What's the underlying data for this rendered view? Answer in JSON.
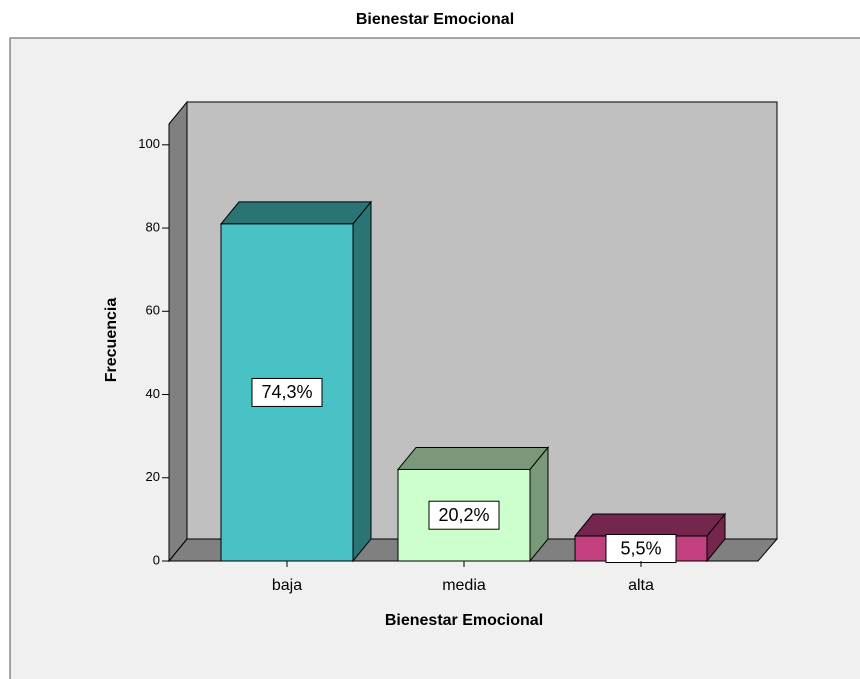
{
  "chart_data": {
    "type": "bar3d",
    "title": "Bienestar Emocional",
    "x_label": "Bienestar Emocional",
    "y_label": "Frecuencia",
    "categories": [
      "baja",
      "media",
      "alta"
    ],
    "values": [
      81,
      22,
      6
    ],
    "value_labels": [
      "74,3%",
      "20,2%",
      "5,5%"
    ],
    "colors": [
      "#48c2c5",
      "#ccffcc",
      "#c2407e"
    ],
    "ylim": [
      0,
      105
    ],
    "yticks": [
      0,
      20,
      40,
      60,
      80,
      100
    ]
  }
}
